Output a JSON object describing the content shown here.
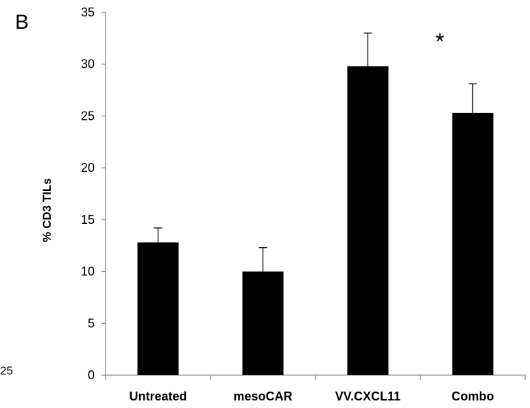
{
  "panel_label": "B",
  "significance_marker": "*",
  "left_fragment_text": "25",
  "chart_data": {
    "type": "bar",
    "title": "",
    "xlabel": "",
    "ylabel": "% CD3 TILs",
    "categories": [
      "Untreated",
      "mesoCAR",
      "VV.CXCL11",
      "Combo"
    ],
    "values": [
      12.8,
      10.0,
      29.8,
      25.3
    ],
    "error_upper": [
      1.4,
      2.3,
      3.2,
      2.8
    ],
    "ylim": [
      0,
      35
    ],
    "yticks": [
      0,
      5,
      10,
      15,
      20,
      25,
      30,
      35
    ],
    "annotations": [
      {
        "category": "VV.CXCL11",
        "text": "*"
      }
    ],
    "grid": false,
    "bar_color": "#000000"
  }
}
